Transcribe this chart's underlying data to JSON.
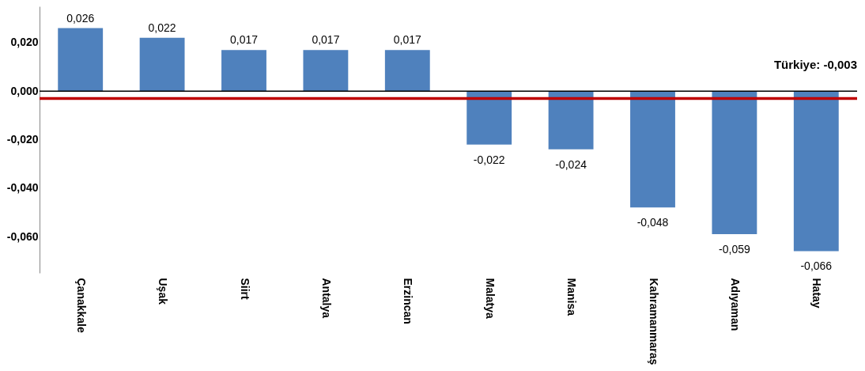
{
  "chart_data": {
    "type": "bar",
    "categories": [
      "Çanakkale",
      "Uşak",
      "Siirt",
      "Antalya",
      "Erzincan",
      "Malatya",
      "Manisa",
      "Kahramanmaraş",
      "Adıyaman",
      "Hatay"
    ],
    "values": [
      0.026,
      0.022,
      0.017,
      0.017,
      0.017,
      -0.022,
      -0.024,
      -0.048,
      -0.059,
      -0.066
    ],
    "value_labels": [
      "0,026",
      "0,022",
      "0,017",
      "0,017",
      "0,017",
      "-0,022",
      "-0,024",
      "-0,048",
      "-0,059",
      "-0,066"
    ],
    "color": "#4f81bd",
    "ylim": [
      -0.075,
      0.035
    ],
    "yticks": [
      {
        "value": 0.02,
        "label": "0,020"
      },
      {
        "value": 0,
        "label": "0,000"
      },
      {
        "value": -0.02,
        "label": "-0,020"
      },
      {
        "value": -0.04,
        "label": "-0,040"
      },
      {
        "value": -0.06,
        "label": "-0,060"
      }
    ],
    "ref_lines": [
      {
        "axis": "y",
        "value": -0.003,
        "label": "Türkiye: -0,003",
        "color": "#c00000"
      }
    ]
  }
}
